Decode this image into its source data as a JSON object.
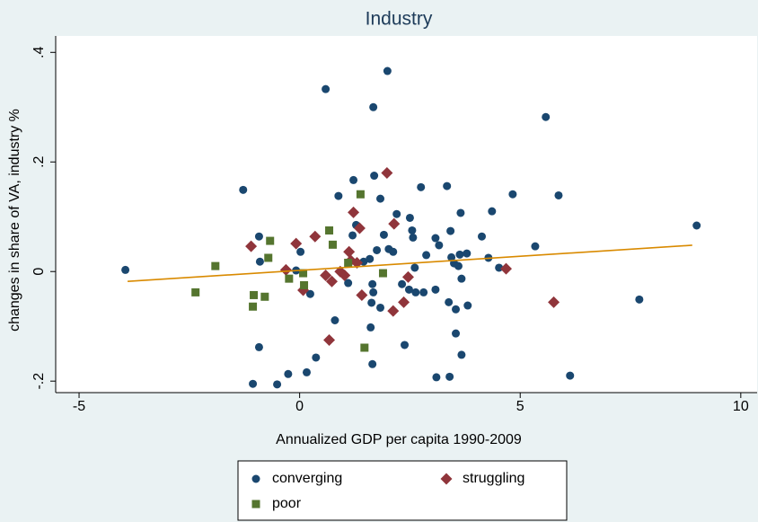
{
  "chart_data": {
    "type": "scatter",
    "title": "Industry",
    "x_label": "Annualized GDP per capita 1990-2009",
    "y_label": "changes in share of VA, industry %",
    "xlim": [
      -5.53,
      10.37
    ],
    "ylim": [
      -0.221,
      0.43
    ],
    "xticks": [
      -5,
      0,
      5,
      10
    ],
    "yticks": [
      {
        "value": -0.2,
        "label": "-.2"
      },
      0,
      {
        "value": 0.2,
        "label": ".2"
      },
      {
        "value": 0.4,
        "label": ".4"
      }
    ],
    "grid": false,
    "series": [
      {
        "name": "converging",
        "color": "#1a476f",
        "marker": "circle",
        "x": [
          -3.95,
          -1.28,
          -0.92,
          -0.92,
          -0.9,
          -1.06,
          -0.51,
          -0.26,
          0.16,
          0.37,
          0.59,
          0.02,
          -0.08,
          0.24,
          0.88,
          0.8,
          1.1,
          1.22,
          1.28,
          1.2,
          1.45,
          1.59,
          1.65,
          1.67,
          1.63,
          1.61,
          1.65,
          1.67,
          1.69,
          1.83,
          1.99,
          1.91,
          2.02,
          2.12,
          2.2,
          1.75,
          1.83,
          2.32,
          2.38,
          2.5,
          2.55,
          2.57,
          2.61,
          2.48,
          2.75,
          2.87,
          2.81,
          2.63,
          3.08,
          3.16,
          3.08,
          3.1,
          3.34,
          3.38,
          3.4,
          3.44,
          3.5,
          3.54,
          3.54,
          3.6,
          3.63,
          3.65,
          3.67,
          3.67,
          3.79,
          3.81,
          4.13,
          4.36,
          4.28,
          4.52,
          4.83,
          5.34,
          5.58,
          5.87,
          6.13,
          7.7,
          9.0,
          3.42
        ],
        "values": [
          0.003,
          0.149,
          0.064,
          -0.138,
          0.018,
          -0.205,
          -0.206,
          -0.187,
          -0.184,
          -0.157,
          0.333,
          0.036,
          0.002,
          -0.041,
          0.138,
          -0.089,
          -0.021,
          0.167,
          0.085,
          0.066,
          0.018,
          0.023,
          -0.023,
          -0.038,
          -0.057,
          -0.102,
          -0.169,
          0.3,
          0.175,
          0.133,
          0.366,
          0.067,
          0.041,
          0.036,
          0.105,
          0.039,
          -0.066,
          -0.023,
          -0.134,
          0.098,
          0.075,
          0.062,
          0.007,
          -0.033,
          0.154,
          0.03,
          -0.038,
          -0.038,
          0.061,
          0.048,
          -0.033,
          -0.193,
          0.156,
          -0.056,
          -0.192,
          0.026,
          0.015,
          -0.069,
          -0.113,
          0.01,
          0.031,
          0.107,
          -0.013,
          -0.152,
          0.033,
          -0.062,
          0.064,
          0.11,
          0.025,
          0.007,
          0.141,
          0.046,
          0.282,
          0.139,
          -0.19,
          -0.051,
          0.084,
          0.074
        ]
      },
      {
        "name": "struggling",
        "color": "#90353b",
        "marker": "diamond",
        "x": [
          -1.1,
          -0.08,
          -0.31,
          0.35,
          0.08,
          0.59,
          0.67,
          0.73,
          0.92,
          1.02,
          1.12,
          1.16,
          1.22,
          1.36,
          1.3,
          1.41,
          1.98,
          2.14,
          2.12,
          2.36,
          2.46,
          4.68,
          5.76
        ],
        "values": [
          0.046,
          0.051,
          0.003,
          0.064,
          -0.034,
          -0.007,
          -0.125,
          -0.018,
          0.0,
          -0.007,
          0.036,
          0.02,
          0.108,
          0.079,
          0.016,
          -0.043,
          0.18,
          0.087,
          -0.072,
          -0.056,
          -0.01,
          0.005,
          -0.056
        ]
      },
      {
        "name": "poor",
        "color": "#55752f",
        "marker": "square",
        "x": [
          -2.36,
          -1.91,
          -1.04,
          -1.06,
          -0.79,
          -0.71,
          -0.67,
          -0.24,
          0.08,
          0.1,
          0.67,
          0.75,
          1.1,
          1.38,
          1.47,
          1.89
        ],
        "values": [
          -0.038,
          0.01,
          -0.043,
          -0.064,
          -0.046,
          0.025,
          0.056,
          -0.013,
          -0.003,
          -0.025,
          0.075,
          0.049,
          0.016,
          0.141,
          -0.139,
          -0.003
        ]
      }
    ],
    "fit": {
      "color": "#d98a00",
      "x": [
        -3.9,
        8.9
      ],
      "values": [
        -0.018,
        0.048
      ]
    }
  }
}
